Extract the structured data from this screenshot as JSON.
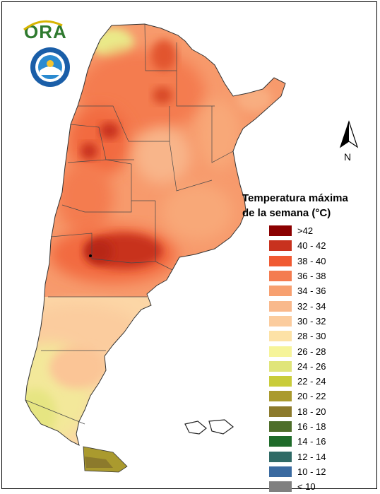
{
  "logo": {
    "text": "ORA",
    "icon": "ora-sun-arc-logo"
  },
  "seal": {
    "icon": "servicio-meteorologico-nacional-seal"
  },
  "north_arrow": {
    "label": "N",
    "icon": "north-arrow-icon"
  },
  "legend": {
    "title_line1": "Temperatura máxima",
    "title_line2": "de la semana (°C)",
    "items": [
      {
        "label": ">42",
        "color": "#8b0000"
      },
      {
        "label": "40 - 42",
        "color": "#c8321e"
      },
      {
        "label": "38 - 40",
        "color": "#f05a32"
      },
      {
        "label": "36 - 38",
        "color": "#f47c50"
      },
      {
        "label": "34 - 36",
        "color": "#f7a070"
      },
      {
        "label": "32 - 34",
        "color": "#f9b98c"
      },
      {
        "label": "30 - 32",
        "color": "#fbcc9e"
      },
      {
        "label": "28 - 30",
        "color": "#fde2a6"
      },
      {
        "label": "26 - 28",
        "color": "#f6f49a"
      },
      {
        "label": "24 - 26",
        "color": "#e0e57a"
      },
      {
        "label": "22 - 24",
        "color": "#c9cc3a"
      },
      {
        "label": "20 - 22",
        "color": "#aa9a2e"
      },
      {
        "label": "18 - 20",
        "color": "#8c7a2c"
      },
      {
        "label": "16 - 18",
        "color": "#4e6e2a"
      },
      {
        "label": "14 - 16",
        "color": "#1f6b2a"
      },
      {
        "label": "12 - 14",
        "color": "#2f6a66"
      },
      {
        "label": "10 - 12",
        "color": "#3a6aa0"
      },
      {
        "label": "< 10",
        "color": "#808080"
      }
    ]
  }
}
